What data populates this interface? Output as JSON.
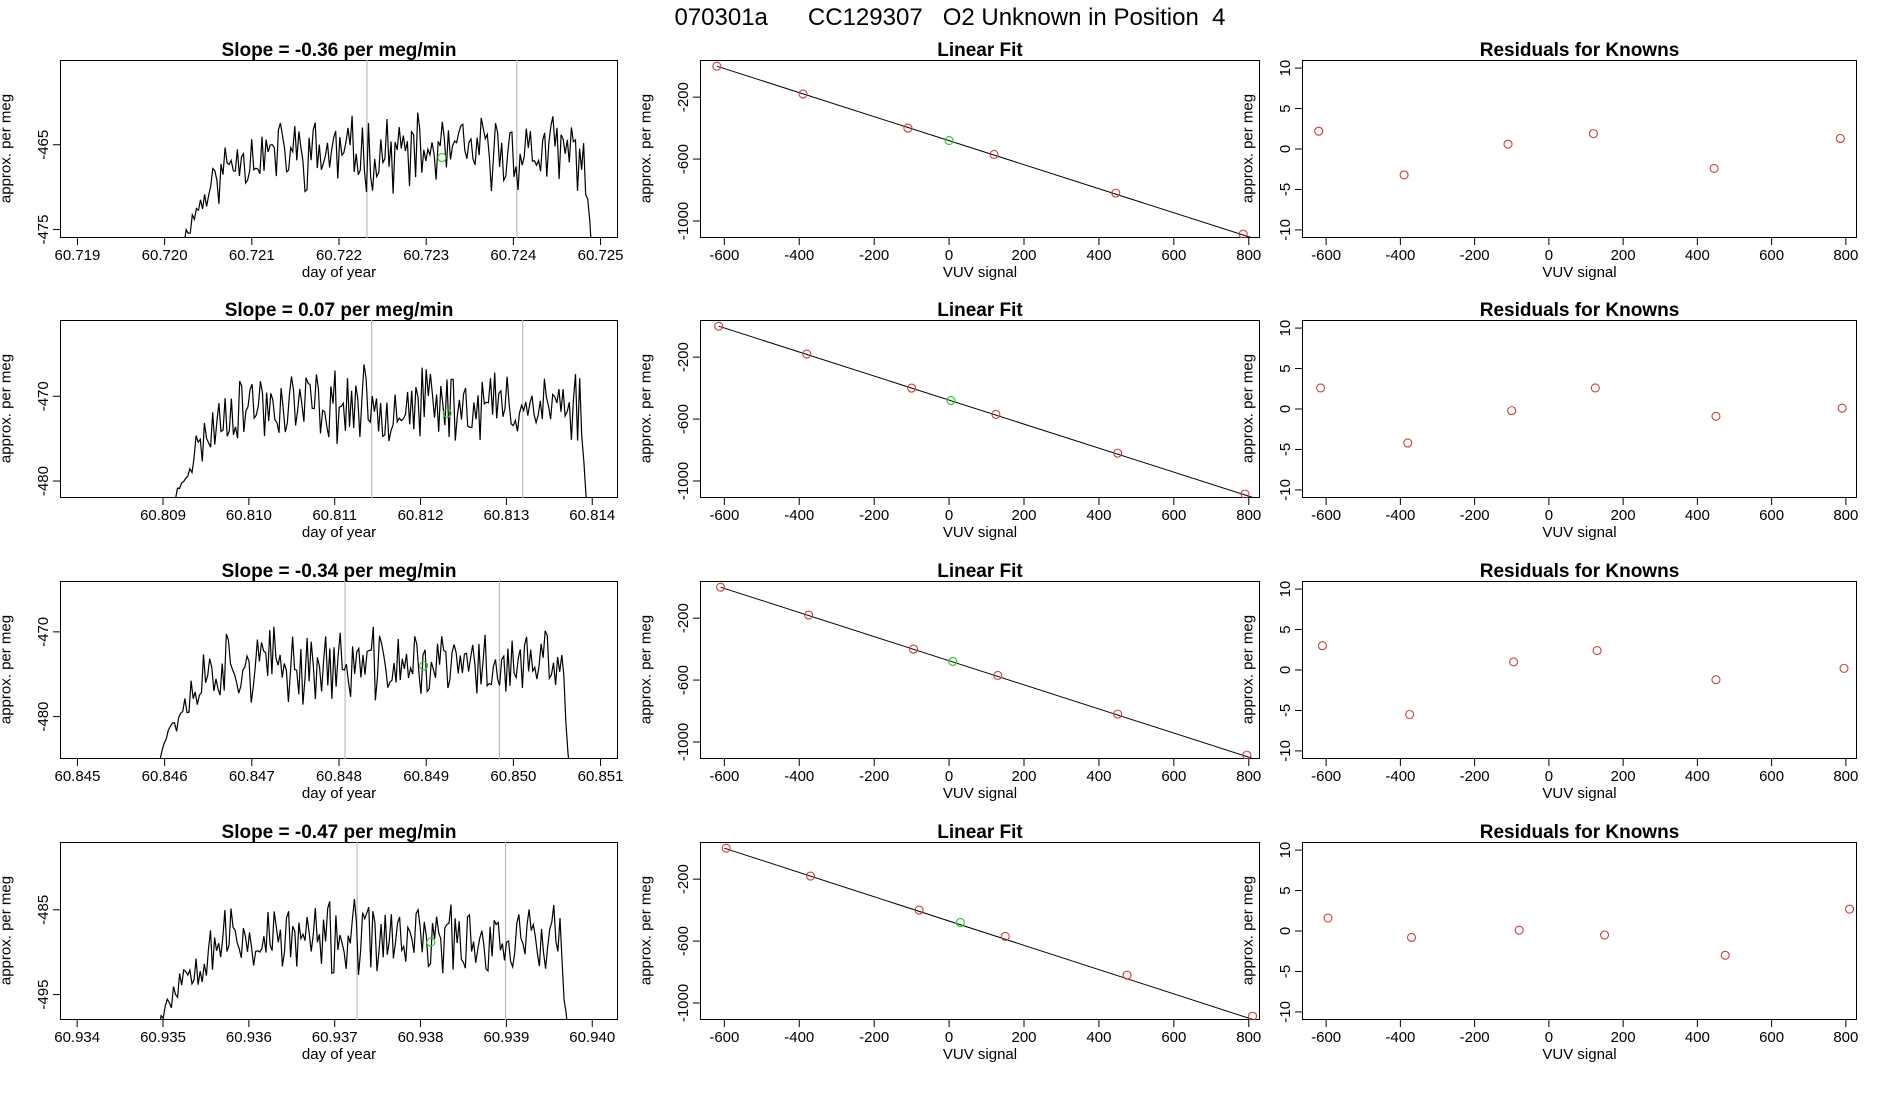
{
  "title": {
    "run_id": "070301a",
    "cylinder": "CC129307",
    "description": "O2 Unknown in Position  4"
  },
  "colors": {
    "trace": "#000000",
    "unknown_point": "#32cd32",
    "known_point": "#cd3c3c",
    "marker_line": "#bbbbbb",
    "fit_line": "#000000"
  },
  "rows": [
    {
      "slope_label": "Slope =  -0.36  per meg/min",
      "time_xlabel": "day of year",
      "time_ylabel": "approx. per meg",
      "fit_title": "Linear Fit",
      "fit_xlabel": "VUV signal",
      "fit_ylabel": "approx. per meg",
      "resid_title": "Residuals for Knowns",
      "resid_xlabel": "VUV signal",
      "resid_ylabel": "approx. per meg"
    },
    {
      "slope_label": "Slope =  0.07  per meg/min",
      "time_xlabel": "day of year",
      "time_ylabel": "approx. per meg",
      "fit_title": "Linear Fit",
      "fit_xlabel": "VUV signal",
      "fit_ylabel": "approx. per meg",
      "resid_title": "Residuals for Knowns",
      "resid_xlabel": "VUV signal",
      "resid_ylabel": "approx. per meg"
    },
    {
      "slope_label": "Slope =  -0.34  per meg/min",
      "time_xlabel": "day of year",
      "time_ylabel": "approx. per meg",
      "fit_title": "Linear Fit",
      "fit_xlabel": "VUV signal",
      "fit_ylabel": "approx. per meg",
      "resid_title": "Residuals for Knowns",
      "resid_xlabel": "VUV signal",
      "resid_ylabel": "approx. per meg"
    },
    {
      "slope_label": "Slope =  -0.47  per meg/min",
      "time_xlabel": "day of year",
      "time_ylabel": "approx. per meg",
      "fit_title": "Linear Fit",
      "fit_xlabel": "VUV signal",
      "fit_ylabel": "approx. per meg",
      "resid_title": "Residuals for Knowns",
      "resid_xlabel": "VUV signal",
      "resid_ylabel": "approx. per meg"
    }
  ],
  "chart_data": [
    {
      "type": "line",
      "title": "Slope =  -0.36  per meg/min",
      "xlabel": "day of year",
      "ylabel": "approx. per meg",
      "xlim": [
        60.7188,
        60.7252
      ],
      "ylim": [
        -476,
        -455
      ],
      "xticks": [
        "60.719",
        "60.720",
        "60.721",
        "60.722",
        "60.723",
        "60.724",
        "60.725"
      ],
      "yticks": [
        "-465",
        "-475"
      ],
      "ytick_values": [
        -465,
        -475
      ],
      "trace_x_range": [
        60.7202,
        60.7249
      ],
      "trace_level": -466,
      "trace_edge_low": -478,
      "trace_seed": 11,
      "marker_lines_x": [
        60.72232,
        60.72404
      ],
      "unknown_point": {
        "x": 60.72318,
        "y": -466.5
      }
    },
    {
      "type": "scatter",
      "title": "Linear Fit",
      "xlabel": "VUV signal",
      "ylabel": "approx. per meg",
      "xlim": [
        -665,
        830
      ],
      "ylim": [
        -1110,
        40
      ],
      "xticks": [
        "-600",
        "-400",
        "-200",
        "0",
        "200",
        "400",
        "600",
        "800"
      ],
      "xtick_values": [
        -600,
        -400,
        -200,
        0,
        200,
        400,
        600,
        800
      ],
      "yticks": [
        "-200",
        "-600",
        "-1000"
      ],
      "ytick_values": [
        -200,
        -600,
        -1000
      ],
      "fit_line": {
        "x": [
          -620,
          810
        ],
        "y": [
          0,
          -1110
        ]
      },
      "known_points": [
        {
          "x": -620,
          "y": 0
        },
        {
          "x": -390,
          "y": -180
        },
        {
          "x": -110,
          "y": -400
        },
        {
          "x": 120,
          "y": -570
        },
        {
          "x": 445,
          "y": -820
        },
        {
          "x": 785,
          "y": -1085
        }
      ],
      "unknown_point": {
        "x": 0,
        "y": -480
      }
    },
    {
      "type": "scatter",
      "title": "Residuals for Knowns",
      "xlabel": "VUV signal",
      "ylabel": "approx. per meg",
      "xlim": [
        -665,
        830
      ],
      "ylim": [
        -11,
        11
      ],
      "xticks": [
        "-600",
        "-400",
        "-200",
        "0",
        "200",
        "400",
        "600",
        "800"
      ],
      "xtick_values": [
        -600,
        -400,
        -200,
        0,
        200,
        400,
        600,
        800
      ],
      "yticks": [
        "10",
        "5",
        "0",
        "-5",
        "-10"
      ],
      "ytick_values": [
        10,
        5,
        0,
        -5,
        -10
      ],
      "points": [
        {
          "x": -620,
          "y": 2.2
        },
        {
          "x": -390,
          "y": -3.2
        },
        {
          "x": -110,
          "y": 0.6
        },
        {
          "x": 120,
          "y": 1.9
        },
        {
          "x": 445,
          "y": -2.4
        },
        {
          "x": 785,
          "y": 1.3
        }
      ]
    },
    {
      "type": "line",
      "title": "Slope =  0.07  per meg/min",
      "xlabel": "day of year",
      "ylabel": "approx. per meg",
      "xlim": [
        60.8078,
        60.8143
      ],
      "ylim": [
        -482,
        -461
      ],
      "xticks": [
        "60.809",
        "60.810",
        "60.811",
        "60.812",
        "60.813",
        "60.814"
      ],
      "yticks": [
        "-470",
        "-480"
      ],
      "ytick_values": [
        -470,
        -480
      ],
      "trace_x_range": [
        60.80912,
        60.81395
      ],
      "trace_level": -471,
      "trace_edge_low": -484,
      "trace_seed": 23,
      "marker_lines_x": [
        60.81143,
        60.81319
      ],
      "unknown_point": {
        "x": 60.81231,
        "y": -472
      }
    },
    {
      "type": "scatter",
      "title": "Linear Fit",
      "xlabel": "VUV signal",
      "ylabel": "approx. per meg",
      "xlim": [
        -665,
        830
      ],
      "ylim": [
        -1110,
        40
      ],
      "xticks": [
        "-600",
        "-400",
        "-200",
        "0",
        "200",
        "400",
        "600",
        "800"
      ],
      "xtick_values": [
        -600,
        -400,
        -200,
        0,
        200,
        400,
        600,
        800
      ],
      "yticks": [
        "-200",
        "-600",
        "-1000"
      ],
      "ytick_values": [
        -200,
        -600,
        -1000
      ],
      "fit_line": {
        "x": [
          -615,
          815
        ],
        "y": [
          0,
          -1110
        ]
      },
      "known_points": [
        {
          "x": -615,
          "y": 0
        },
        {
          "x": -380,
          "y": -180
        },
        {
          "x": -100,
          "y": -400
        },
        {
          "x": 125,
          "y": -570
        },
        {
          "x": 450,
          "y": -820
        },
        {
          "x": 790,
          "y": -1085
        }
      ],
      "unknown_point": {
        "x": 5,
        "y": -480
      }
    },
    {
      "type": "scatter",
      "title": "Residuals for Knowns",
      "xlabel": "VUV signal",
      "ylabel": "approx. per meg",
      "xlim": [
        -665,
        830
      ],
      "ylim": [
        -11,
        11
      ],
      "xticks": [
        "-600",
        "-400",
        "-200",
        "0",
        "200",
        "400",
        "600",
        "800"
      ],
      "xtick_values": [
        -600,
        -400,
        -200,
        0,
        200,
        400,
        600,
        800
      ],
      "yticks": [
        "10",
        "5",
        "0",
        "-5",
        "-10"
      ],
      "ytick_values": [
        10,
        5,
        0,
        -5,
        -10
      ],
      "points": [
        {
          "x": -615,
          "y": 2.6
        },
        {
          "x": -380,
          "y": -4.2
        },
        {
          "x": -100,
          "y": -0.2
        },
        {
          "x": 125,
          "y": 2.6
        },
        {
          "x": 450,
          "y": -0.9
        },
        {
          "x": 790,
          "y": 0.1
        }
      ]
    },
    {
      "type": "line",
      "title": "Slope =  -0.34  per meg/min",
      "xlabel": "day of year",
      "ylabel": "approx. per meg",
      "xlim": [
        60.8448,
        60.8512
      ],
      "ylim": [
        -485,
        -464
      ],
      "xticks": [
        "60.845",
        "60.846",
        "60.847",
        "60.848",
        "60.849",
        "60.850",
        "60.851"
      ],
      "yticks": [
        "-470",
        "-480"
      ],
      "ytick_values": [
        -470,
        -480
      ],
      "trace_x_range": [
        60.8459,
        60.85065
      ],
      "trace_level": -474,
      "trace_edge_low": -487,
      "trace_seed": 37,
      "marker_lines_x": [
        60.84807,
        60.84984
      ],
      "unknown_point": {
        "x": 60.84897,
        "y": -474
      }
    },
    {
      "type": "scatter",
      "title": "Linear Fit",
      "xlabel": "VUV signal",
      "ylabel": "approx. per meg",
      "xlim": [
        -665,
        830
      ],
      "ylim": [
        -1110,
        40
      ],
      "xticks": [
        "-600",
        "-400",
        "-200",
        "0",
        "200",
        "400",
        "600",
        "800"
      ],
      "xtick_values": [
        -600,
        -400,
        -200,
        0,
        200,
        400,
        600,
        800
      ],
      "yticks": [
        "-200",
        "-600",
        "-1000"
      ],
      "ytick_values": [
        -200,
        -600,
        -1000
      ],
      "fit_line": {
        "x": [
          -610,
          815
        ],
        "y": [
          0,
          -1110
        ]
      },
      "known_points": [
        {
          "x": -610,
          "y": 0
        },
        {
          "x": -375,
          "y": -180
        },
        {
          "x": -95,
          "y": -400
        },
        {
          "x": 130,
          "y": -570
        },
        {
          "x": 450,
          "y": -820
        },
        {
          "x": 795,
          "y": -1085
        }
      ],
      "unknown_point": {
        "x": 10,
        "y": -480
      }
    },
    {
      "type": "scatter",
      "title": "Residuals for Knowns",
      "xlabel": "VUV signal",
      "ylabel": "approx. per meg",
      "xlim": [
        -665,
        830
      ],
      "ylim": [
        -11,
        11
      ],
      "xticks": [
        "-600",
        "-400",
        "-200",
        "0",
        "200",
        "400",
        "600",
        "800"
      ],
      "xtick_values": [
        -600,
        -400,
        -200,
        0,
        200,
        400,
        600,
        800
      ],
      "yticks": [
        "10",
        "5",
        "0",
        "-5",
        "-10"
      ],
      "ytick_values": [
        10,
        5,
        0,
        -5,
        -10
      ],
      "points": [
        {
          "x": -610,
          "y": 3.0
        },
        {
          "x": -375,
          "y": -5.5
        },
        {
          "x": -95,
          "y": 1.0
        },
        {
          "x": 130,
          "y": 2.4
        },
        {
          "x": 450,
          "y": -1.2
        },
        {
          "x": 795,
          "y": 0.2
        }
      ]
    },
    {
      "type": "line",
      "title": "Slope =  -0.47  per meg/min",
      "xlabel": "day of year",
      "ylabel": "approx. per meg",
      "xlim": [
        60.9338,
        60.9403
      ],
      "ylim": [
        -498,
        -477
      ],
      "xticks": [
        "60.934",
        "60.935",
        "60.936",
        "60.937",
        "60.938",
        "60.939",
        "60.940"
      ],
      "yticks": [
        "-485",
        "-495"
      ],
      "ytick_values": [
        -485,
        -495
      ],
      "trace_x_range": [
        60.93493,
        60.93972
      ],
      "trace_level": -488.5,
      "trace_edge_low": -500,
      "trace_seed": 53,
      "marker_lines_x": [
        60.93726,
        60.93899
      ],
      "unknown_point": {
        "x": 60.93812,
        "y": -488.8
      }
    },
    {
      "type": "scatter",
      "title": "Linear Fit",
      "xlabel": "VUV signal",
      "ylabel": "approx. per meg",
      "xlim": [
        -665,
        830
      ],
      "ylim": [
        -1110,
        40
      ],
      "xticks": [
        "-600",
        "-400",
        "-200",
        "0",
        "200",
        "400",
        "600",
        "800"
      ],
      "xtick_values": [
        -600,
        -400,
        -200,
        0,
        200,
        400,
        600,
        800
      ],
      "yticks": [
        "-200",
        "-600",
        "-1000"
      ],
      "ytick_values": [
        -200,
        -600,
        -1000
      ],
      "fit_line": {
        "x": [
          -600,
          815
        ],
        "y": [
          0,
          -1110
        ]
      },
      "known_points": [
        {
          "x": -595,
          "y": 0
        },
        {
          "x": -370,
          "y": -180
        },
        {
          "x": -80,
          "y": -400
        },
        {
          "x": 150,
          "y": -570
        },
        {
          "x": 475,
          "y": -820
        },
        {
          "x": 810,
          "y": -1085
        }
      ],
      "unknown_point": {
        "x": 30,
        "y": -480
      }
    },
    {
      "type": "scatter",
      "title": "Residuals for Knowns",
      "xlabel": "VUV signal",
      "ylabel": "approx. per meg",
      "xlim": [
        -665,
        830
      ],
      "ylim": [
        -11,
        11
      ],
      "xticks": [
        "-600",
        "-400",
        "-200",
        "0",
        "200",
        "400",
        "600",
        "800"
      ],
      "xtick_values": [
        -600,
        -400,
        -200,
        0,
        200,
        400,
        600,
        800
      ],
      "yticks": [
        "10",
        "5",
        "0",
        "-5",
        "-10"
      ],
      "ytick_values": [
        10,
        5,
        0,
        -5,
        -10
      ],
      "points": [
        {
          "x": -595,
          "y": 1.6
        },
        {
          "x": -370,
          "y": -0.8
        },
        {
          "x": -80,
          "y": 0.1
        },
        {
          "x": 150,
          "y": -0.5
        },
        {
          "x": 475,
          "y": -3.0
        },
        {
          "x": 810,
          "y": 2.7
        }
      ]
    }
  ]
}
